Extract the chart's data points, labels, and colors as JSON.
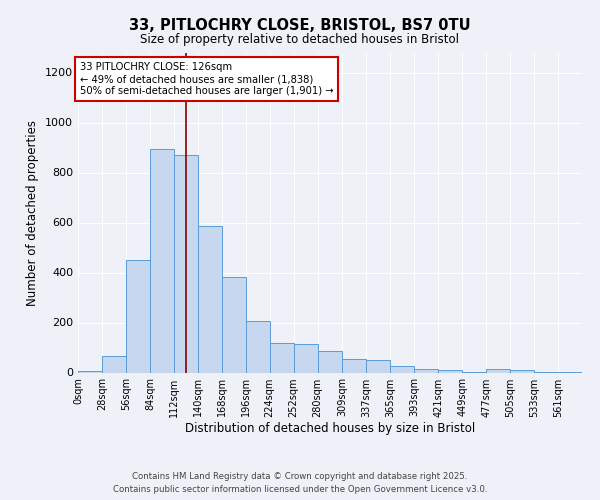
{
  "title": "33, PITLOCHRY CLOSE, BRISTOL, BS7 0TU",
  "subtitle": "Size of property relative to detached houses in Bristol",
  "xlabel": "Distribution of detached houses by size in Bristol",
  "ylabel": "Number of detached properties",
  "bar_values": [
    8,
    65,
    450,
    893,
    870,
    585,
    383,
    207,
    120,
    115,
    88,
    55,
    50,
    28,
    15,
    10,
    3,
    15,
    10,
    3,
    2
  ],
  "bin_edges": [
    0,
    28,
    56,
    84,
    112,
    140,
    168,
    196,
    224,
    252,
    280,
    309,
    337,
    365,
    393,
    421,
    449,
    477,
    505,
    533,
    561
  ],
  "bin_labels": [
    "0sqm",
    "28sqm",
    "56sqm",
    "84sqm",
    "112sqm",
    "140sqm",
    "168sqm",
    "196sqm",
    "224sqm",
    "252sqm",
    "280sqm",
    "309sqm",
    "337sqm",
    "365sqm",
    "393sqm",
    "421sqm",
    "449sqm",
    "477sqm",
    "505sqm",
    "533sqm",
    "561sqm"
  ],
  "bar_color": "#c5d8f0",
  "bar_edge_color": "#5b9bd5",
  "vline_x": 126,
  "vline_color": "#8b0000",
  "ylim": [
    0,
    1280
  ],
  "yticks": [
    0,
    200,
    400,
    600,
    800,
    1000,
    1200
  ],
  "annotation_text": "33 PITLOCHRY CLOSE: 126sqm\n← 49% of detached houses are smaller (1,838)\n50% of semi-detached houses are larger (1,901) →",
  "annotation_box_color": "#ffffff",
  "annotation_box_edge": "#cc0000",
  "footer_text": "Contains HM Land Registry data © Crown copyright and database right 2025.\nContains public sector information licensed under the Open Government Licence v3.0.",
  "fig_bg_color": "#eef2f8"
}
